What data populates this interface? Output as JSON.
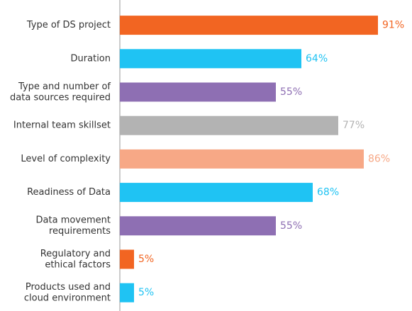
{
  "chart_data": {
    "type": "bar",
    "orientation": "horizontal",
    "title": "",
    "xlabel": "",
    "ylabel": "",
    "xlim": [
      0,
      100
    ],
    "grid": false,
    "legend": "none",
    "categories": [
      "Type of DS project",
      "Duration",
      "Type and number of data sources required",
      "Internal team skillset",
      "Level of complexity",
      "Readiness of Data",
      "Data movement requirements",
      "Regulatory and ethical factors",
      "Products used and cloud environment"
    ],
    "category_lines": [
      [
        "Type of DS project"
      ],
      [
        "Duration"
      ],
      [
        "Type and number of",
        "data sources required"
      ],
      [
        "Internal team skillset"
      ],
      [
        "Level of complexity"
      ],
      [
        "Readiness of Data"
      ],
      [
        "Data movement",
        "requirements"
      ],
      [
        "Regulatory and",
        "ethical factors"
      ],
      [
        "Products used and",
        "cloud environment"
      ]
    ],
    "values": [
      91,
      64,
      55,
      77,
      86,
      68,
      55,
      5,
      5
    ],
    "value_labels": [
      "91%",
      "64%",
      "55%",
      "77%",
      "86%",
      "68%",
      "55%",
      "5%",
      "5%"
    ],
    "colors": [
      "#F26522",
      "#1FC3F3",
      "#8E6FB3",
      "#B3B3B3",
      "#F7A886",
      "#1FC3F3",
      "#8E6FB3",
      "#F26522",
      "#1FC3F3"
    ],
    "axis_color": "#999999"
  }
}
